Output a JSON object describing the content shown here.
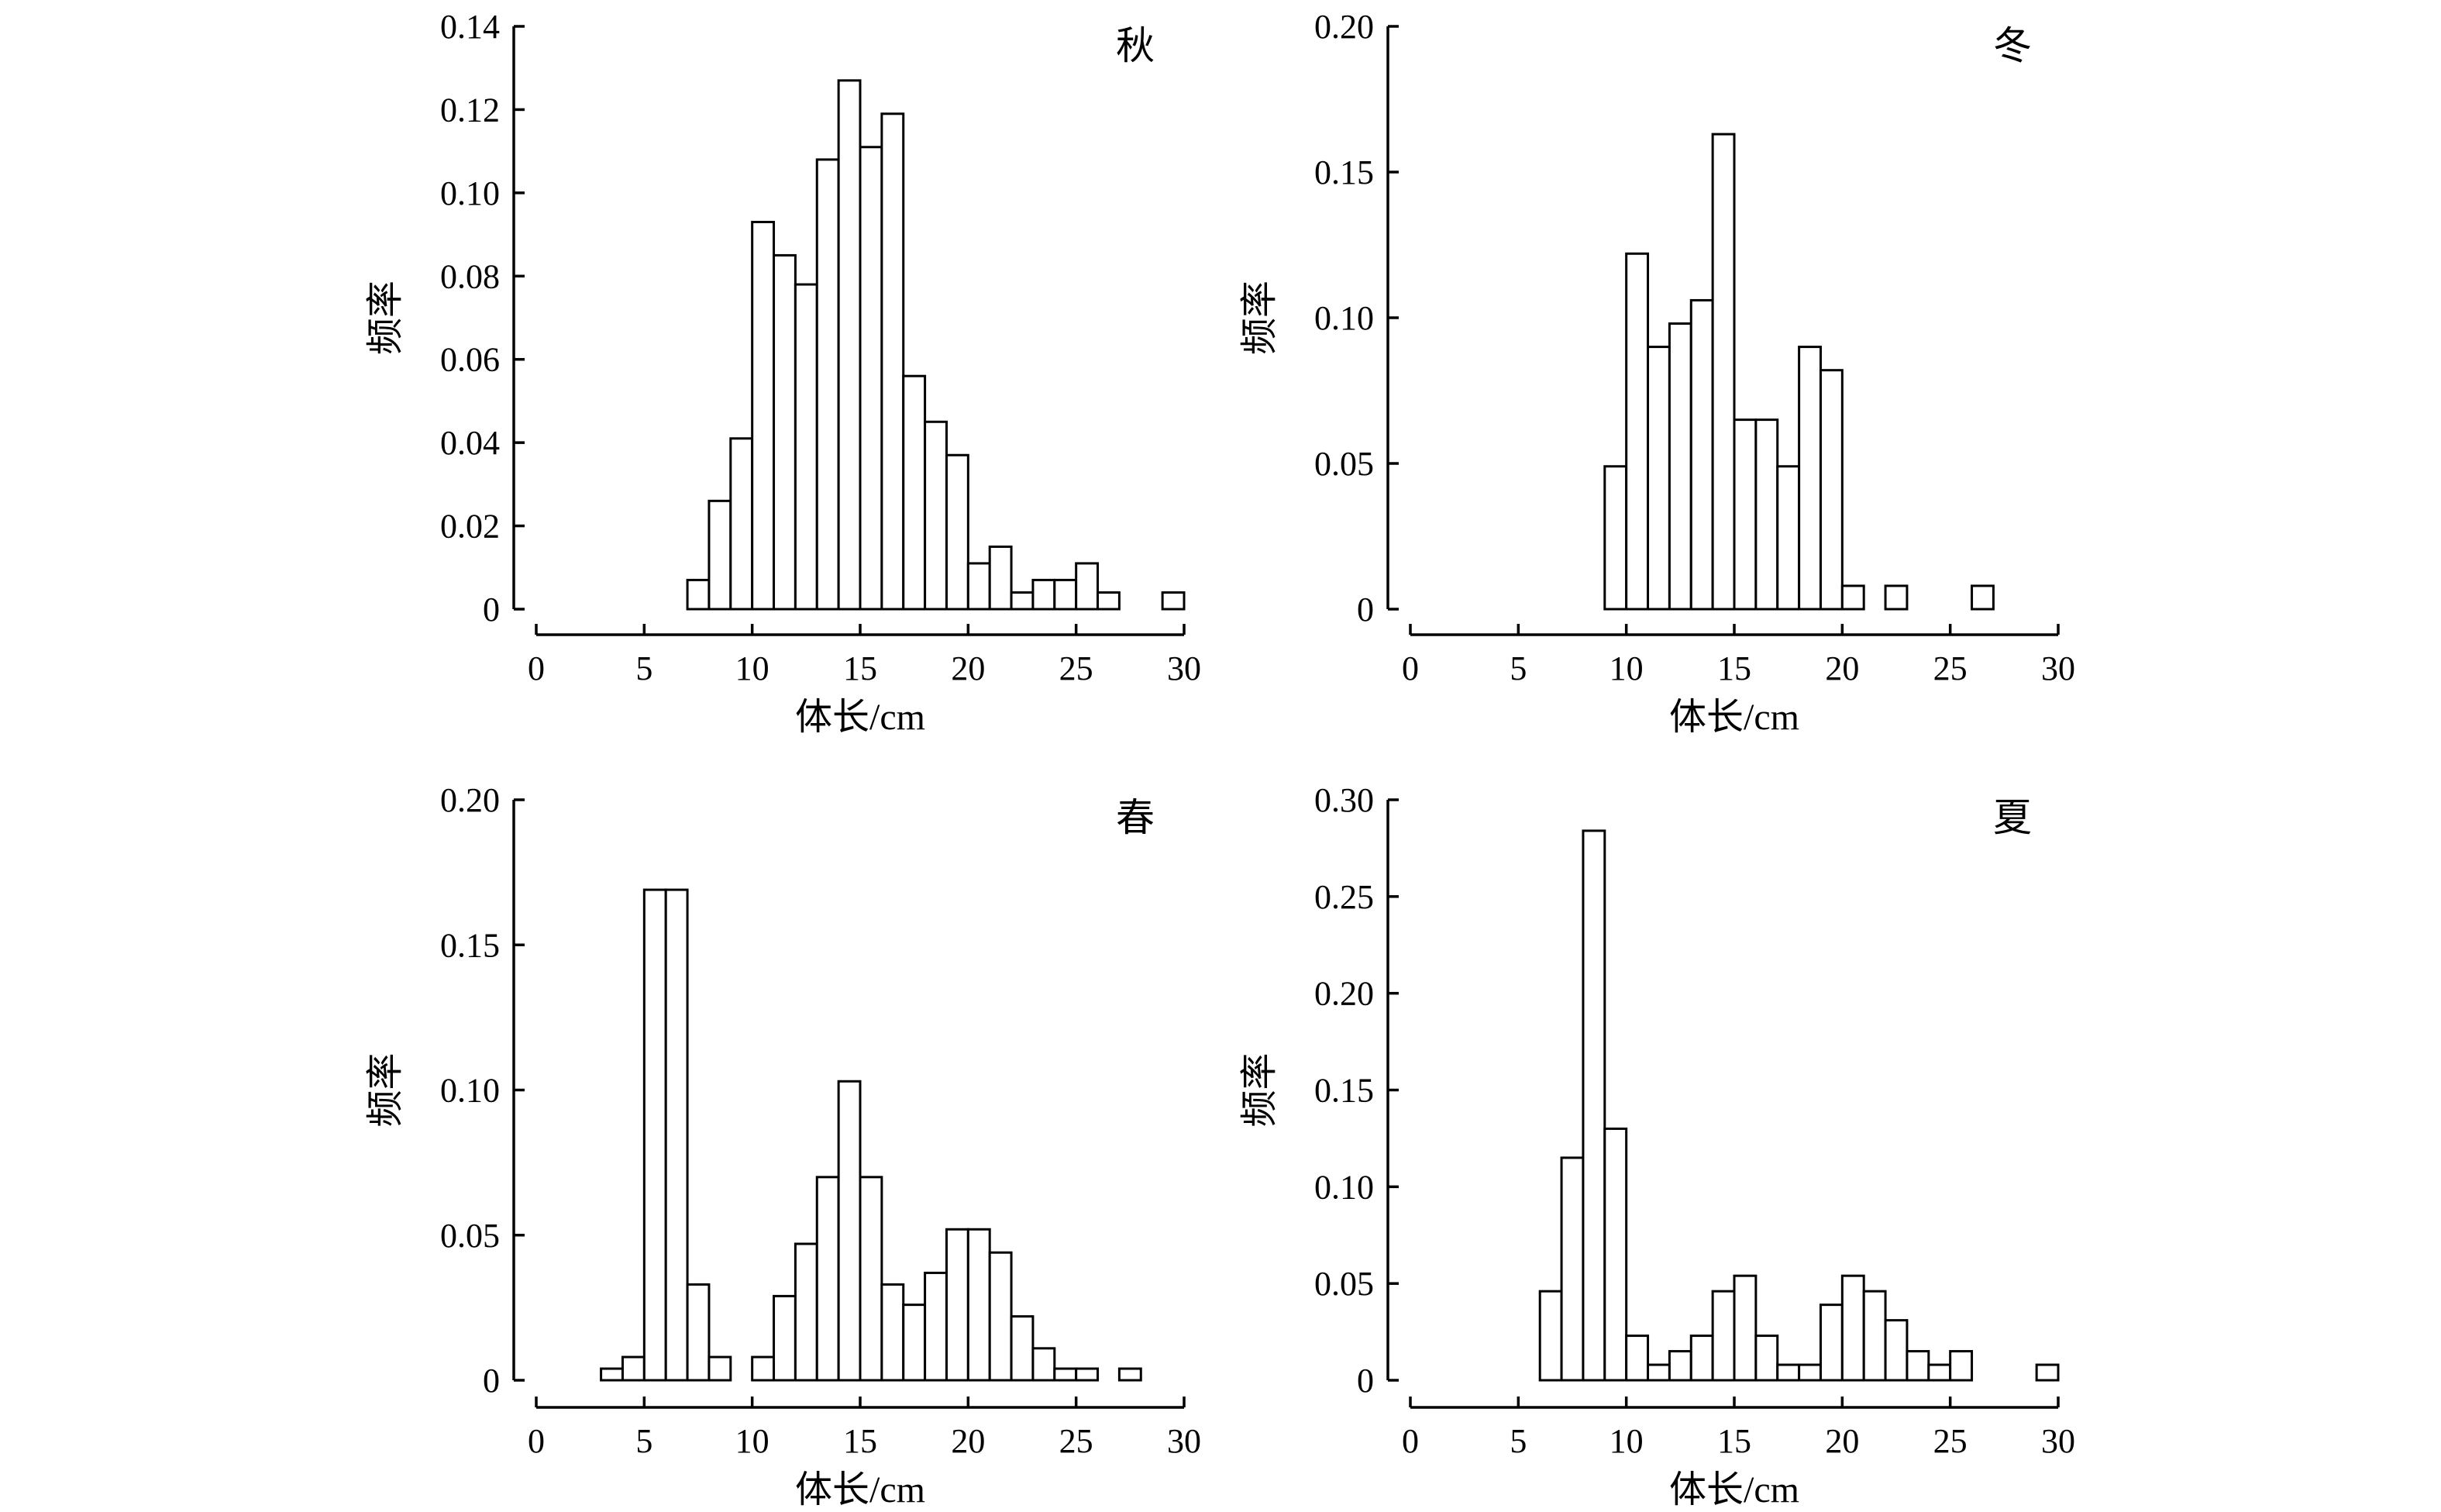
{
  "chart_data": [
    {
      "type": "bar",
      "title": "秋",
      "xlabel": "体长/cm",
      "ylabel": "频率",
      "xlim": [
        0,
        30
      ],
      "ylim": [
        0,
        0.14
      ],
      "xticks": [
        "0",
        "5",
        "10",
        "15",
        "20",
        "25",
        "30"
      ],
      "yticks": [
        "0",
        "0.02",
        "0.04",
        "0.06",
        "0.08",
        "0.10",
        "0.12",
        "0.14"
      ],
      "bin_width": 1,
      "x": [
        7,
        8,
        9,
        10,
        11,
        12,
        13,
        14,
        15,
        16,
        17,
        18,
        19,
        20,
        21,
        22,
        23,
        24,
        25,
        26,
        27,
        28,
        29
      ],
      "values": [
        0.007,
        0.026,
        0.041,
        0.093,
        0.085,
        0.078,
        0.108,
        0.127,
        0.111,
        0.119,
        0.056,
        0.045,
        0.037,
        0.011,
        0.015,
        0.004,
        0.007,
        0.007,
        0.011,
        0.004,
        0,
        0,
        0.004
      ]
    },
    {
      "type": "bar",
      "title": "冬",
      "xlabel": "体长/cm",
      "ylabel": "频率",
      "xlim": [
        0,
        30
      ],
      "ylim": [
        0,
        0.2
      ],
      "xticks": [
        "0",
        "5",
        "10",
        "15",
        "20",
        "25",
        "30"
      ],
      "yticks": [
        "0",
        "0.05",
        "0.10",
        "0.15",
        "0.20"
      ],
      "bin_width": 1,
      "x": [
        9,
        10,
        11,
        12,
        13,
        14,
        15,
        16,
        17,
        18,
        19,
        20,
        21,
        22,
        23,
        24,
        25,
        26
      ],
      "values": [
        0.049,
        0.122,
        0.09,
        0.098,
        0.106,
        0.163,
        0.065,
        0.065,
        0.049,
        0.09,
        0.082,
        0.008,
        0,
        0.008,
        0,
        0,
        0,
        0.008
      ]
    },
    {
      "type": "bar",
      "title": "春",
      "xlabel": "体长/cm",
      "ylabel": "频率",
      "xlim": [
        0,
        30
      ],
      "ylim": [
        0,
        0.2
      ],
      "xticks": [
        "0",
        "5",
        "10",
        "15",
        "20",
        "25",
        "30"
      ],
      "yticks": [
        "0",
        "0.05",
        "0.10",
        "0.15",
        "0.20"
      ],
      "bin_width": 1,
      "x": [
        3,
        4,
        5,
        6,
        7,
        8,
        9,
        10,
        11,
        12,
        13,
        14,
        15,
        16,
        17,
        18,
        19,
        20,
        21,
        22,
        23,
        24,
        25,
        26,
        27
      ],
      "values": [
        0.004,
        0.008,
        0.169,
        0.169,
        0.033,
        0.008,
        0,
        0.008,
        0.029,
        0.047,
        0.07,
        0.103,
        0.07,
        0.033,
        0.026,
        0.037,
        0.052,
        0.052,
        0.044,
        0.022,
        0.011,
        0.004,
        0.004,
        0,
        0.004
      ]
    },
    {
      "type": "bar",
      "title": "夏",
      "xlabel": "体长/cm",
      "ylabel": "频率",
      "xlim": [
        0,
        30
      ],
      "ylim": [
        0,
        0.3
      ],
      "xticks": [
        "0",
        "5",
        "10",
        "15",
        "20",
        "25",
        "30"
      ],
      "yticks": [
        "0",
        "0.05",
        "0.10",
        "0.15",
        "0.20",
        "0.25",
        "0.30"
      ],
      "bin_width": 1,
      "x": [
        6,
        7,
        8,
        9,
        10,
        11,
        12,
        13,
        14,
        15,
        16,
        17,
        18,
        19,
        20,
        21,
        22,
        23,
        24,
        25,
        26,
        27,
        28,
        29
      ],
      "values": [
        0.046,
        0.115,
        0.284,
        0.13,
        0.023,
        0.008,
        0.015,
        0.023,
        0.046,
        0.054,
        0.023,
        0.008,
        0.008,
        0.039,
        0.054,
        0.046,
        0.031,
        0.015,
        0.008,
        0.015,
        0,
        0,
        0,
        0.008
      ]
    }
  ]
}
